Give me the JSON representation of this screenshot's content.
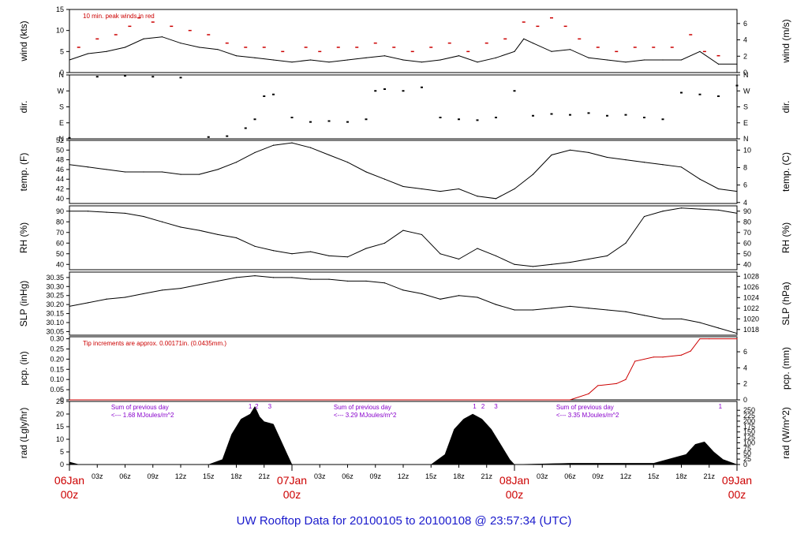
{
  "footer_title": "UW Rooftop Data for 20100105  to  20100108 @ 23:57:34  (UTC)",
  "colors": {
    "axis": "#000000",
    "data": "#000000",
    "peak": "#cc0000",
    "red_text": "#cc0000",
    "purple_text": "#8800cc",
    "title_blue": "#1a1acc",
    "day_label": "#cc0000"
  },
  "time_axis": {
    "hours_span": 72,
    "minor_ticks": [
      {
        "h": 3,
        "label": "03z"
      },
      {
        "h": 6,
        "label": "06z"
      },
      {
        "h": 9,
        "label": "09z"
      },
      {
        "h": 12,
        "label": "12z"
      },
      {
        "h": 15,
        "label": "15z"
      },
      {
        "h": 18,
        "label": "18z"
      },
      {
        "h": 21,
        "label": "21z"
      },
      {
        "h": 27,
        "label": "03z"
      },
      {
        "h": 30,
        "label": "06z"
      },
      {
        "h": 33,
        "label": "09z"
      },
      {
        "h": 36,
        "label": "12z"
      },
      {
        "h": 39,
        "label": "15z"
      },
      {
        "h": 42,
        "label": "18z"
      },
      {
        "h": 45,
        "label": "21z"
      },
      {
        "h": 51,
        "label": "03z"
      },
      {
        "h": 54,
        "label": "06z"
      },
      {
        "h": 57,
        "label": "09z"
      },
      {
        "h": 60,
        "label": "12z"
      },
      {
        "h": 63,
        "label": "15z"
      },
      {
        "h": 66,
        "label": "18z"
      },
      {
        "h": 69,
        "label": "21z"
      }
    ],
    "day_ticks": [
      {
        "h": 0,
        "date": "06Jan",
        "time": "00z"
      },
      {
        "h": 24,
        "date": "07Jan",
        "time": "00z"
      },
      {
        "h": 48,
        "date": "08Jan",
        "time": "00z"
      },
      {
        "h": 72,
        "date": "09Jan",
        "time": "00z"
      }
    ]
  },
  "chart_data": [
    {
      "id": "wind",
      "type": "line",
      "ylabel_left": "wind (kts)",
      "ylabel_right": "wind (m/s)",
      "ylim": [
        0,
        15
      ],
      "yticks_left": [
        0,
        5,
        10,
        15
      ],
      "right_axis": {
        "factor": 0.5144,
        "ticks": [
          0,
          2,
          4,
          6
        ]
      },
      "annotation": "10 min. peak winds in red",
      "x": [
        0,
        2,
        4,
        6,
        8,
        10,
        12,
        14,
        16,
        18,
        20,
        22,
        24,
        26,
        28,
        30,
        32,
        34,
        36,
        38,
        40,
        42,
        44,
        46,
        48,
        49,
        50,
        52,
        54,
        56,
        58,
        60,
        62,
        64,
        66,
        68,
        70,
        72
      ],
      "y": [
        3,
        4.5,
        5,
        6,
        8,
        8.5,
        7,
        6,
        5.5,
        4,
        3.5,
        3,
        2.5,
        3,
        2.5,
        3,
        3.5,
        4,
        3,
        2.5,
        3,
        4,
        2.5,
        3.5,
        5,
        8,
        7,
        5,
        5.5,
        3.5,
        3,
        2.5,
        3,
        3,
        3,
        5,
        2,
        2
      ],
      "peaks_x": [
        1,
        3,
        5,
        6.5,
        7.5,
        9,
        11,
        13,
        15,
        17,
        19,
        21,
        23,
        25.5,
        27,
        29,
        31,
        33,
        35,
        37,
        39,
        41,
        43,
        45,
        47,
        49,
        50.5,
        52,
        53.5,
        55,
        57,
        59,
        61,
        63,
        65,
        67,
        68.5,
        70
      ],
      "peaks_y": [
        6,
        8,
        9,
        11,
        13,
        12,
        11,
        10,
        9,
        7,
        6,
        6,
        5,
        6,
        5,
        6,
        6,
        7,
        6,
        5,
        6,
        7,
        5,
        7,
        8,
        12,
        11,
        13,
        11,
        8,
        6,
        5,
        6,
        6,
        6,
        9,
        5,
        4
      ]
    },
    {
      "id": "dir",
      "type": "scatter",
      "ylabel_left": "dir.",
      "ylabel_right": "dir.",
      "ylim": [
        0,
        360
      ],
      "yticks": [
        {
          "v": 0,
          "label": "N"
        },
        {
          "v": 90,
          "label": "E"
        },
        {
          "v": 180,
          "label": "S"
        },
        {
          "v": 270,
          "label": "W"
        },
        {
          "v": 360,
          "label": "N"
        }
      ],
      "x": [
        0,
        3,
        6,
        9,
        12,
        15,
        17,
        19,
        20,
        21,
        22,
        24,
        26,
        28,
        30,
        32,
        33,
        34,
        36,
        38,
        40,
        42,
        44,
        46,
        48,
        50,
        52,
        54,
        56,
        58,
        60,
        62,
        64,
        66,
        68,
        70,
        72
      ],
      "y": [
        5,
        350,
        355,
        350,
        345,
        10,
        15,
        60,
        110,
        240,
        250,
        120,
        95,
        100,
        95,
        110,
        270,
        280,
        270,
        290,
        120,
        110,
        105,
        120,
        270,
        130,
        140,
        135,
        145,
        130,
        135,
        120,
        110,
        260,
        250,
        240,
        300
      ]
    },
    {
      "id": "temp",
      "type": "line",
      "ylabel_left": "temp. (F)",
      "ylabel_right": "temp. (C)",
      "ylim": [
        39,
        52
      ],
      "yticks_left": [
        40,
        42,
        44,
        46,
        48,
        50,
        52
      ],
      "right_axis": {
        "offset": 32,
        "scale": 1.8,
        "ticks": [
          4,
          6,
          8,
          10
        ]
      },
      "x": [
        0,
        2,
        4,
        6,
        8,
        10,
        12,
        14,
        16,
        18,
        20,
        22,
        24,
        26,
        28,
        30,
        32,
        34,
        36,
        38,
        40,
        42,
        44,
        46,
        48,
        50,
        52,
        54,
        56,
        58,
        60,
        62,
        64,
        66,
        68,
        70,
        72
      ],
      "y": [
        47,
        46.5,
        46,
        45.5,
        45.5,
        45.5,
        45,
        45,
        46,
        47.5,
        49.5,
        51,
        51.5,
        50.5,
        49,
        47.5,
        45.5,
        44,
        42.5,
        42,
        41.5,
        42,
        40.5,
        40,
        42,
        45,
        49,
        50,
        49.5,
        48.5,
        48,
        47.5,
        47,
        46.5,
        44,
        42,
        41.5
      ]
    },
    {
      "id": "rh",
      "type": "line",
      "ylabel_left": "RH (%)",
      "ylabel_right": "RH (%)",
      "ylim": [
        35,
        95
      ],
      "yticks_left": [
        40,
        50,
        60,
        70,
        80,
        90
      ],
      "right_axis": {
        "factor": 1,
        "ticks": [
          40,
          50,
          60,
          70,
          80,
          90
        ]
      },
      "x": [
        0,
        2,
        4,
        6,
        8,
        10,
        12,
        14,
        16,
        18,
        20,
        22,
        24,
        26,
        28,
        30,
        32,
        34,
        36,
        38,
        40,
        42,
        44,
        46,
        48,
        50,
        52,
        54,
        56,
        58,
        60,
        62,
        64,
        66,
        68,
        70,
        72
      ],
      "y": [
        90,
        90,
        89,
        88,
        85,
        80,
        75,
        72,
        68,
        65,
        57,
        53,
        50,
        52,
        48,
        47,
        55,
        60,
        72,
        68,
        50,
        45,
        55,
        48,
        40,
        38,
        40,
        42,
        45,
        48,
        60,
        85,
        90,
        93,
        92,
        91,
        88
      ]
    },
    {
      "id": "slp",
      "type": "line",
      "ylabel_left": "SLP (inHg)",
      "ylabel_right": "SLP (hPa)",
      "ylim": [
        30.03,
        30.38
      ],
      "yticks_left": [
        30.05,
        30.1,
        30.15,
        30.2,
        30.25,
        30.3,
        30.35
      ],
      "right_axis": {
        "factor": 33.8639,
        "ticks": [
          1018,
          1020,
          1022,
          1024,
          1026,
          1028
        ]
      },
      "x": [
        0,
        2,
        4,
        6,
        8,
        10,
        12,
        14,
        16,
        18,
        20,
        22,
        24,
        26,
        28,
        30,
        32,
        34,
        36,
        38,
        40,
        42,
        44,
        46,
        48,
        50,
        52,
        54,
        56,
        58,
        60,
        62,
        64,
        66,
        68,
        70,
        72
      ],
      "y": [
        30.19,
        30.21,
        30.23,
        30.24,
        30.26,
        30.28,
        30.29,
        30.31,
        30.33,
        30.35,
        30.36,
        30.35,
        30.35,
        30.34,
        30.34,
        30.33,
        30.33,
        30.32,
        30.28,
        30.26,
        30.23,
        30.25,
        30.24,
        30.2,
        30.17,
        30.17,
        30.18,
        30.19,
        30.18,
        30.17,
        30.16,
        30.14,
        30.12,
        30.12,
        30.1,
        30.07,
        30.04
      ]
    },
    {
      "id": "pcp",
      "type": "line",
      "ylabel_left": "pcp. (in)",
      "ylabel_right": "pcp. (mm)",
      "ylim": [
        0,
        0.31
      ],
      "yticks_left": [
        0.0,
        0.05,
        0.1,
        0.15,
        0.2,
        0.25,
        0.3
      ],
      "right_axis": {
        "factor": 25.4,
        "ticks": [
          0,
          2,
          4,
          6,
          8
        ]
      },
      "annotation": "Tip increments are approx. 0.00171in. (0.0435mm.)",
      "x": [
        0,
        54,
        56,
        57,
        59,
        60,
        61,
        63,
        64,
        66,
        67,
        68,
        69,
        72
      ],
      "y": [
        0,
        0,
        0.03,
        0.07,
        0.08,
        0.1,
        0.19,
        0.21,
        0.21,
        0.22,
        0.24,
        0.3,
        0.3,
        0.3
      ]
    },
    {
      "id": "rad",
      "type": "area",
      "ylabel_left": "rad (Lgly/hr)",
      "ylabel_right": "rad (W/m^2)",
      "ylim": [
        0,
        25
      ],
      "yticks_left": [
        0,
        5,
        10,
        15,
        20,
        25
      ],
      "right_axis": {
        "factor": 11.63,
        "ticks": [
          0,
          25,
          50,
          75,
          100,
          125,
          150,
          175,
          200,
          225,
          250
        ]
      },
      "x": [
        0,
        0.5,
        1,
        15,
        16.5,
        17.5,
        18.5,
        19.5,
        20,
        20.5,
        21,
        22,
        22.5,
        23.5,
        24,
        39,
        40.5,
        41.5,
        42.5,
        43.5,
        44.5,
        45.5,
        46.5,
        47.5,
        48,
        54,
        60,
        63,
        64.5,
        65.5,
        66.5,
        67.5,
        68.5,
        69.5,
        70.5,
        72
      ],
      "y": [
        1,
        0.5,
        0,
        0,
        2,
        12,
        18,
        20,
        23,
        19,
        17,
        16,
        12,
        4,
        0,
        0,
        4,
        14,
        18,
        20,
        18,
        14,
        8,
        2,
        0,
        0.5,
        0.5,
        0.5,
        2,
        3,
        4,
        8,
        9,
        5,
        2,
        0
      ],
      "annotations": [
        {
          "h": 4.5,
          "line1": "Sum of previous day",
          "line2": "<--- 1.68 MJoules/m^2"
        },
        {
          "h": 28.5,
          "line1": "Sum of previous day",
          "line2": "<--- 3.29 MJoules/m^2"
        },
        {
          "h": 52.5,
          "line1": "Sum of previous day",
          "line2": "<--- 3.35 MJoules/m^2"
        }
      ],
      "markers": [
        {
          "h": 19.5,
          "label": "1"
        },
        {
          "h": 20.2,
          "label": "2"
        },
        {
          "h": 21.6,
          "label": "3"
        },
        {
          "h": 43.7,
          "label": "1"
        },
        {
          "h": 44.6,
          "label": "2"
        },
        {
          "h": 46.0,
          "label": "3"
        },
        {
          "h": 70.2,
          "label": "1"
        }
      ]
    }
  ]
}
